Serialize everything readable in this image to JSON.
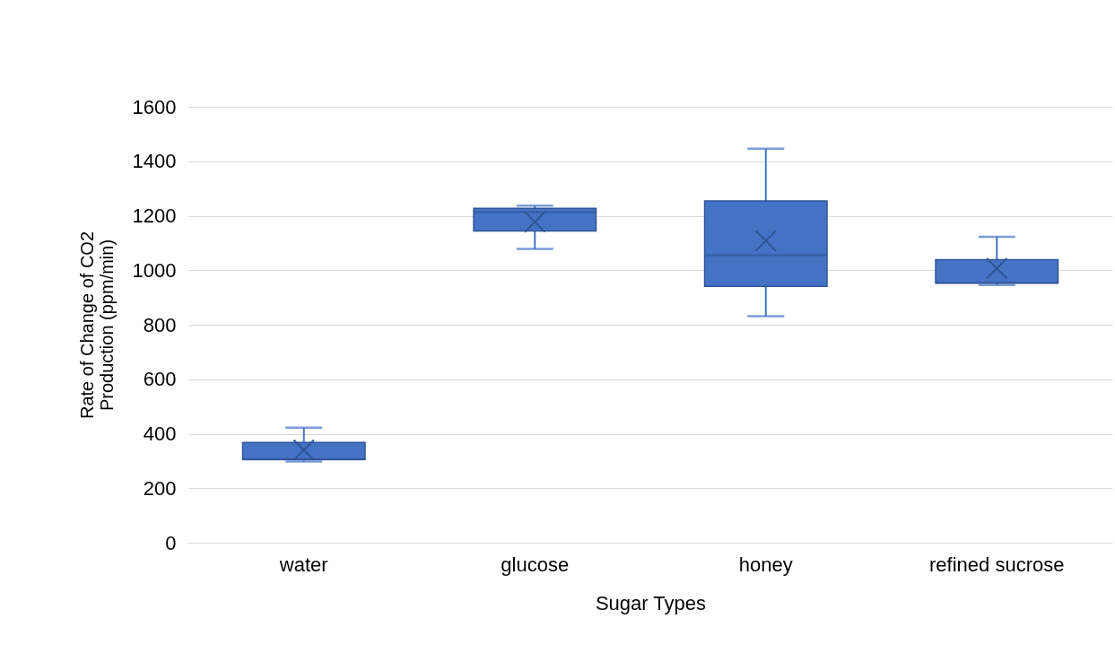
{
  "chart_data": {
    "type": "box",
    "xlabel": "Sugar Types",
    "ylabel": "Rate of Change  of CO2 Production (ppm/min)",
    "categories": [
      "water",
      "glucose",
      "honey",
      "refined sucrose"
    ],
    "series": [
      {
        "color": "#4472c4",
        "boxes": [
          {
            "low": 298,
            "q1": 305,
            "median": 305,
            "q3": 368,
            "high": 422,
            "mean": 340
          },
          {
            "low": 1078,
            "q1": 1144,
            "median": 1213,
            "q3": 1227,
            "high": 1237,
            "mean": 1177
          },
          {
            "low": 831,
            "q1": 941,
            "median": 1055,
            "q3": 1254,
            "high": 1446,
            "mean": 1108
          },
          {
            "low": 946,
            "q1": 953,
            "median": 953,
            "q3": 1039,
            "high": 1123,
            "mean": 1007
          }
        ]
      }
    ],
    "ylim": [
      0,
      1600
    ],
    "yticks": [
      0,
      200,
      400,
      600,
      800,
      1000,
      1200,
      1400,
      1600
    ],
    "grid": "y"
  }
}
